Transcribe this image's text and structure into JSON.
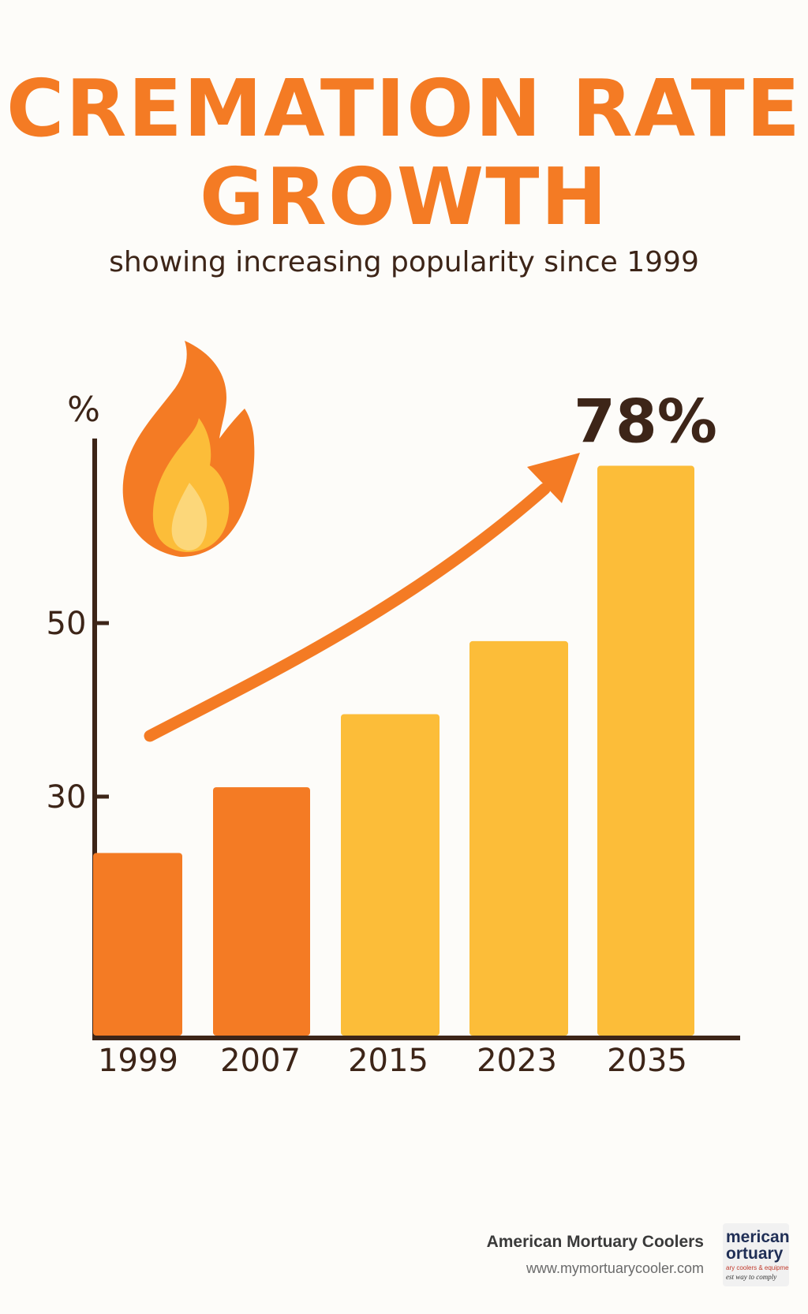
{
  "title": {
    "line1": "CREMATION RATE",
    "line2": "GROWTH"
  },
  "subtitle": "showing increasing popularity since 1999",
  "footer": {
    "company": "American Mortuary Coolers",
    "url": "www.mymortuarycooler.com",
    "logo_lines": [
      "merican",
      "ortuary",
      "ary coolers & equipment",
      "est way to comply"
    ]
  },
  "colors": {
    "orange": "#f47b24",
    "yellow": "#fcbd39",
    "dark_brown": "#3d2518",
    "flame_light": "#fcd77a"
  },
  "icons": [
    "flame-icon",
    "trend-arrow-icon"
  ],
  "chart_data": {
    "type": "bar",
    "categories": [
      "1999",
      "2007",
      "2015",
      "2023",
      "2035"
    ],
    "values": [
      25,
      34,
      44,
      54,
      78
    ],
    "bar_colors": [
      "#f47b24",
      "#f47b24",
      "#fcbd39",
      "#fcbd39",
      "#fcbd39"
    ],
    "ylabel": "%",
    "yticks": [
      30,
      50
    ],
    "ylim": [
      0,
      80
    ],
    "annotation": "78%",
    "grid": false,
    "legend": "none"
  }
}
